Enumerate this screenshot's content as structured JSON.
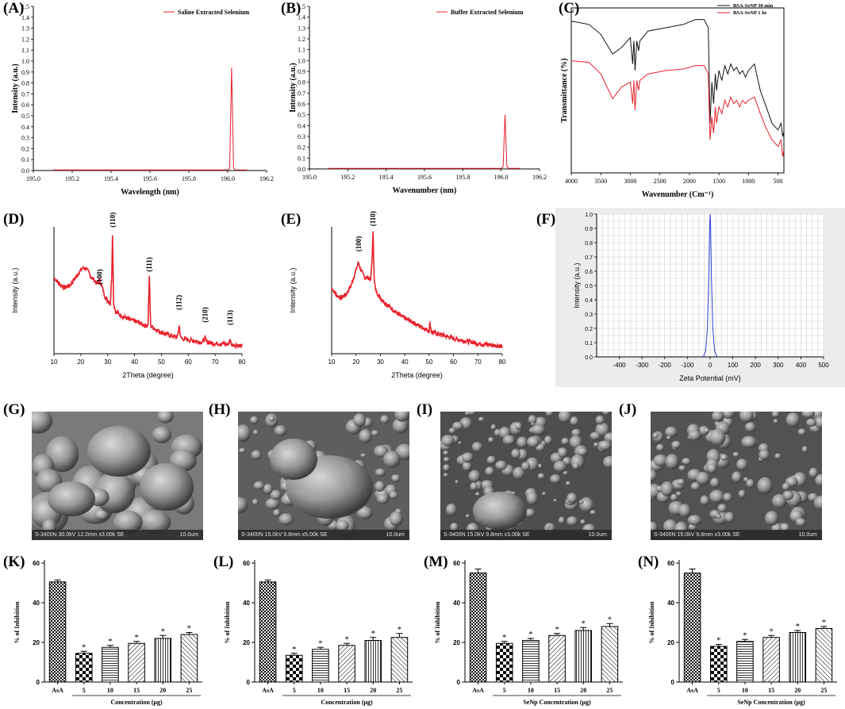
{
  "chart_data": [
    {
      "id": "A",
      "panel_label": "(A)",
      "type": "line",
      "title": "",
      "xlabel": "Wavelength (nm)",
      "ylabel": "Intensity (a.u.)",
      "xlim": [
        195.0,
        196.2
      ],
      "ylim": [
        0,
        1.5
      ],
      "xticks": [
        "195.0",
        "195.2",
        "195.4",
        "195.6",
        "195.8",
        "196.0",
        "196.2"
      ],
      "yticks": [
        "0.0",
        "0.1",
        "0.2",
        "0.3",
        "0.4",
        "0.5",
        "0.6",
        "0.7",
        "0.8",
        "0.9",
        "1.0",
        "1.1",
        "1.2",
        "1.3",
        "1.4",
        "1.5"
      ],
      "legend": [
        "Saline Extracted Selenium"
      ],
      "legend_position": "top-right",
      "series": [
        {
          "name": "Saline Extracted Selenium",
          "color": "#e8202a",
          "x": [
            195.1,
            196.0,
            196.01,
            196.02,
            196.03,
            196.04,
            196.1
          ],
          "y": [
            0.005,
            0.005,
            0.02,
            0.94,
            0.02,
            0.005,
            0.005
          ]
        }
      ]
    },
    {
      "id": "B",
      "panel_label": "(B)",
      "type": "line",
      "title": "",
      "xlabel": "Wavenumber (nm)",
      "ylabel": "Intensity (a.u.)",
      "xlim": [
        195.0,
        196.2
      ],
      "ylim": [
        0,
        1.5
      ],
      "xticks": [
        "195.0",
        "195.2",
        "195.4",
        "195.6",
        "195.8",
        "196.0",
        "196.2"
      ],
      "yticks": [
        "0.0",
        "0.1",
        "0.2",
        "0.3",
        "0.4",
        "0.5",
        "0.6",
        "0.7",
        "0.8",
        "0.9",
        "1.0",
        "1.1",
        "1.2",
        "1.3",
        "1.4",
        "1.5"
      ],
      "legend": [
        "Buffer Extracted Selenium"
      ],
      "legend_position": "top-right",
      "series": [
        {
          "name": "Buffer Extracted Selenium",
          "color": "#e8202a",
          "x": [
            195.1,
            196.0,
            196.01,
            196.02,
            196.03,
            196.04,
            196.1
          ],
          "y": [
            0.005,
            0.005,
            0.02,
            0.5,
            0.02,
            0.005,
            0.005
          ]
        }
      ]
    },
    {
      "id": "C",
      "panel_label": "(C)",
      "type": "line",
      "title": "",
      "xlabel": "Wavenumber (Cm⁻¹)",
      "ylabel": "Transmittance (%)",
      "xlim": [
        4000,
        400
      ],
      "ylim": [
        0,
        1
      ],
      "xticks": [
        "4000",
        "3500",
        "3000",
        "2500",
        "2000",
        "1500",
        "1000",
        "500"
      ],
      "yticks": [],
      "legend": [
        "BSA-SeNP 30 min",
        "BSA-SeNP 1 hr"
      ],
      "legend_position": "top-right",
      "series": [
        {
          "name": "BSA-SeNP 30 min",
          "color": "#111111",
          "x": [
            4000,
            3700,
            3500,
            3300,
            3150,
            3000,
            2960,
            2940,
            2920,
            2890,
            2860,
            2840,
            2700,
            2400,
            2100,
            1900,
            1750,
            1680,
            1650,
            1620,
            1590,
            1560,
            1540,
            1500,
            1450,
            1400,
            1350,
            1300,
            1250,
            1200,
            1150,
            1100,
            1050,
            1000,
            900,
            800,
            700,
            600,
            500,
            450,
            420,
            400
          ],
          "y": [
            0.92,
            0.9,
            0.84,
            0.72,
            0.76,
            0.82,
            0.66,
            0.8,
            0.62,
            0.8,
            0.74,
            0.8,
            0.86,
            0.88,
            0.9,
            0.93,
            0.93,
            0.88,
            0.3,
            0.55,
            0.42,
            0.6,
            0.5,
            0.62,
            0.56,
            0.65,
            0.6,
            0.66,
            0.62,
            0.64,
            0.6,
            0.62,
            0.58,
            0.62,
            0.66,
            0.5,
            0.4,
            0.3,
            0.26,
            0.3,
            0.22,
            0.25
          ]
        },
        {
          "name": "BSA-SeNP 1 hr",
          "color": "#e8202a",
          "x": [
            4000,
            3700,
            3500,
            3300,
            3150,
            3000,
            2960,
            2940,
            2920,
            2890,
            2860,
            2840,
            2700,
            2400,
            2100,
            1900,
            1750,
            1680,
            1650,
            1620,
            1590,
            1560,
            1540,
            1500,
            1450,
            1400,
            1350,
            1300,
            1250,
            1200,
            1150,
            1100,
            1050,
            1000,
            900,
            800,
            700,
            600,
            500,
            450,
            420,
            400
          ],
          "y": [
            0.68,
            0.67,
            0.6,
            0.45,
            0.52,
            0.55,
            0.42,
            0.56,
            0.38,
            0.56,
            0.5,
            0.56,
            0.6,
            0.62,
            0.63,
            0.65,
            0.65,
            0.6,
            0.2,
            0.34,
            0.24,
            0.4,
            0.3,
            0.4,
            0.36,
            0.44,
            0.4,
            0.46,
            0.42,
            0.44,
            0.4,
            0.44,
            0.42,
            0.44,
            0.46,
            0.36,
            0.27,
            0.2,
            0.16,
            0.2,
            0.1,
            0.14
          ]
        }
      ]
    },
    {
      "id": "D",
      "panel_label": "(D)",
      "type": "line",
      "title": "",
      "xlabel": "2Theta (degree)",
      "ylabel": "Intensity (a.u.)",
      "xlim": [
        10,
        80
      ],
      "ylim": [
        0,
        1
      ],
      "xticks": [
        "10",
        "20",
        "30",
        "40",
        "50",
        "60",
        "70",
        "80"
      ],
      "yticks": [],
      "annotations": [
        {
          "text": "(100)",
          "x": 27,
          "y": 0.52
        },
        {
          "text": "(110)",
          "x": 31.8,
          "y": 0.97
        },
        {
          "text": "(111)",
          "x": 45.5,
          "y": 0.62
        },
        {
          "text": "(112)",
          "x": 56.5,
          "y": 0.32
        },
        {
          "text": "(210)",
          "x": 66.3,
          "y": 0.22
        },
        {
          "text": "(113)",
          "x": 75.5,
          "y": 0.2
        }
      ],
      "series": [
        {
          "name": "XRD",
          "color": "#e8202a",
          "x": [
            10,
            12,
            14,
            16,
            18,
            20,
            21,
            22,
            23,
            24,
            25,
            26,
            27,
            28,
            29,
            30,
            31,
            31.5,
            31.8,
            32.2,
            33,
            35,
            38,
            41,
            44,
            45,
            45.5,
            46,
            48,
            51,
            54,
            56,
            56.6,
            57.2,
            60,
            63,
            65,
            66.3,
            67,
            70,
            73,
            75,
            75.5,
            76,
            78,
            80
          ],
          "y": [
            0.6,
            0.55,
            0.52,
            0.54,
            0.6,
            0.66,
            0.68,
            0.67,
            0.64,
            0.6,
            0.58,
            0.55,
            0.58,
            0.52,
            0.45,
            0.42,
            0.4,
            0.6,
            0.95,
            0.4,
            0.33,
            0.3,
            0.27,
            0.25,
            0.22,
            0.23,
            0.6,
            0.22,
            0.19,
            0.16,
            0.14,
            0.13,
            0.22,
            0.12,
            0.11,
            0.1,
            0.09,
            0.12,
            0.09,
            0.08,
            0.08,
            0.07,
            0.12,
            0.07,
            0.07,
            0.06
          ]
        }
      ]
    },
    {
      "id": "E",
      "panel_label": "(E)",
      "type": "line",
      "title": "",
      "xlabel": "2Theta (degree)",
      "ylabel": "Intensity (a.u.)",
      "xlim": [
        10,
        80
      ],
      "ylim": [
        0,
        1
      ],
      "xticks": [
        "10",
        "20",
        "30",
        "40",
        "50",
        "60",
        "70",
        "80"
      ],
      "yticks": [],
      "annotations": [
        {
          "text": "(100)",
          "x": 21,
          "y": 0.78
        },
        {
          "text": "(110)",
          "x": 27,
          "y": 0.98
        }
      ],
      "series": [
        {
          "name": "XRD",
          "color": "#e8202a",
          "x": [
            10,
            12,
            14,
            16,
            18,
            19,
            20,
            21,
            22,
            23,
            24,
            25,
            26,
            26.5,
            27,
            27.5,
            28,
            30,
            32,
            35,
            38,
            40,
            43,
            46,
            50,
            50.3,
            51,
            55,
            60,
            65,
            68,
            70,
            75,
            80
          ],
          "y": [
            0.52,
            0.46,
            0.44,
            0.47,
            0.54,
            0.6,
            0.66,
            0.72,
            0.66,
            0.62,
            0.6,
            0.6,
            0.58,
            0.72,
            0.95,
            0.58,
            0.5,
            0.44,
            0.4,
            0.35,
            0.3,
            0.28,
            0.25,
            0.22,
            0.18,
            0.24,
            0.17,
            0.15,
            0.12,
            0.1,
            0.09,
            0.08,
            0.07,
            0.06
          ]
        }
      ]
    },
    {
      "id": "F",
      "panel_label": "(F)",
      "type": "line",
      "title": "",
      "xlabel": "Zeta Potential (mV)",
      "ylabel": "Intensity (a.u.)",
      "xlim": [
        -500,
        500
      ],
      "ylim": [
        0,
        1.0
      ],
      "xticks": [
        "-400",
        "-300",
        "-200",
        "-100",
        "0",
        "100",
        "200",
        "300",
        "400",
        "500"
      ],
      "yticks": [
        "0.0",
        "0.1",
        "0.2",
        "0.3",
        "0.4",
        "0.5",
        "0.6",
        "0.7",
        "0.8",
        "0.9",
        "1.0"
      ],
      "series": [
        {
          "name": "Zeta",
          "color": "#2a3fd8",
          "x": [
            -30,
            -20,
            -12,
            -6,
            -2,
            0,
            2,
            6,
            12,
            20,
            30
          ],
          "y": [
            0,
            0.04,
            0.2,
            0.55,
            0.92,
            1.0,
            0.92,
            0.55,
            0.2,
            0.04,
            0
          ]
        }
      ]
    },
    {
      "id": "K",
      "panel_label": "(K)",
      "type": "bar",
      "xlabel": "Concentration (µg)",
      "ylabel": "% of Inhibition",
      "ylim": [
        0,
        60
      ],
      "yticks": [
        "0",
        "20",
        "40",
        "60"
      ],
      "categories": [
        "AsA",
        "5",
        "10",
        "15",
        "20",
        "25"
      ],
      "values": [
        50.5,
        14.5,
        17.5,
        19.5,
        22,
        24
      ],
      "errors": [
        1,
        1,
        1,
        1,
        1.5,
        1
      ],
      "significance": [
        "",
        "*",
        "*",
        "*",
        "*",
        "*"
      ]
    },
    {
      "id": "L",
      "panel_label": "(L)",
      "type": "bar",
      "xlabel": "Concentration (µg)",
      "ylabel": "% of Inhibition",
      "ylim": [
        0,
        60
      ],
      "yticks": [
        "0",
        "20",
        "40",
        "60"
      ],
      "categories": [
        "AsA",
        "5",
        "10",
        "15",
        "20",
        "25"
      ],
      "values": [
        50.5,
        13.5,
        16.5,
        18.5,
        21,
        22.5
      ],
      "errors": [
        1,
        1,
        1,
        1,
        1.5,
        2
      ],
      "significance": [
        "",
        "*",
        "*",
        "*",
        "*",
        "*"
      ]
    },
    {
      "id": "M",
      "panel_label": "(M)",
      "type": "bar",
      "xlabel": "SeNp Concentration (µg)",
      "ylabel": "% of Inhibition",
      "ylim": [
        0,
        60
      ],
      "yticks": [
        "0",
        "20",
        "40",
        "60"
      ],
      "categories": [
        "AsA",
        "5",
        "10",
        "15",
        "20",
        "25"
      ],
      "values": [
        55,
        19.5,
        21,
        23.5,
        26,
        28
      ],
      "errors": [
        2,
        1,
        1,
        1,
        1.5,
        1.5
      ],
      "significance": [
        "",
        "*",
        "*",
        "*",
        "*",
        "*"
      ]
    },
    {
      "id": "N",
      "panel_label": "(N)",
      "type": "bar",
      "xlabel": "SeNp Concentration (µg)",
      "ylabel": "% of Inhibition",
      "ylim": [
        0,
        60
      ],
      "yticks": [
        "0",
        "20",
        "40",
        "60"
      ],
      "categories": [
        "AsA",
        "5",
        "10",
        "15",
        "20",
        "25"
      ],
      "values": [
        55,
        18,
        20.5,
        22.5,
        25,
        27
      ],
      "errors": [
        2,
        1,
        1,
        1,
        1,
        1
      ],
      "significance": [
        "",
        "*",
        "*",
        "*",
        "*",
        "*"
      ]
    }
  ],
  "sem_images": [
    {
      "id": "G",
      "panel_label": "(G)",
      "caption": "S-3400N 30.0kV 12.2mm x3.00k SE",
      "scale": "10.0um"
    },
    {
      "id": "H",
      "panel_label": "(H)",
      "caption": "S-3400N 15.0kV 9.8mm x5.00k SE",
      "scale": "10.0um"
    },
    {
      "id": "I",
      "panel_label": "(I)",
      "caption": "S-3400N 15.0kV 9.8mm x3.00k SE",
      "scale": "10.0um"
    },
    {
      "id": "J",
      "panel_label": "(J)",
      "caption": "S-3400N 15.0kV 9.8mm x3.00k SE",
      "scale": "10.0um"
    }
  ]
}
